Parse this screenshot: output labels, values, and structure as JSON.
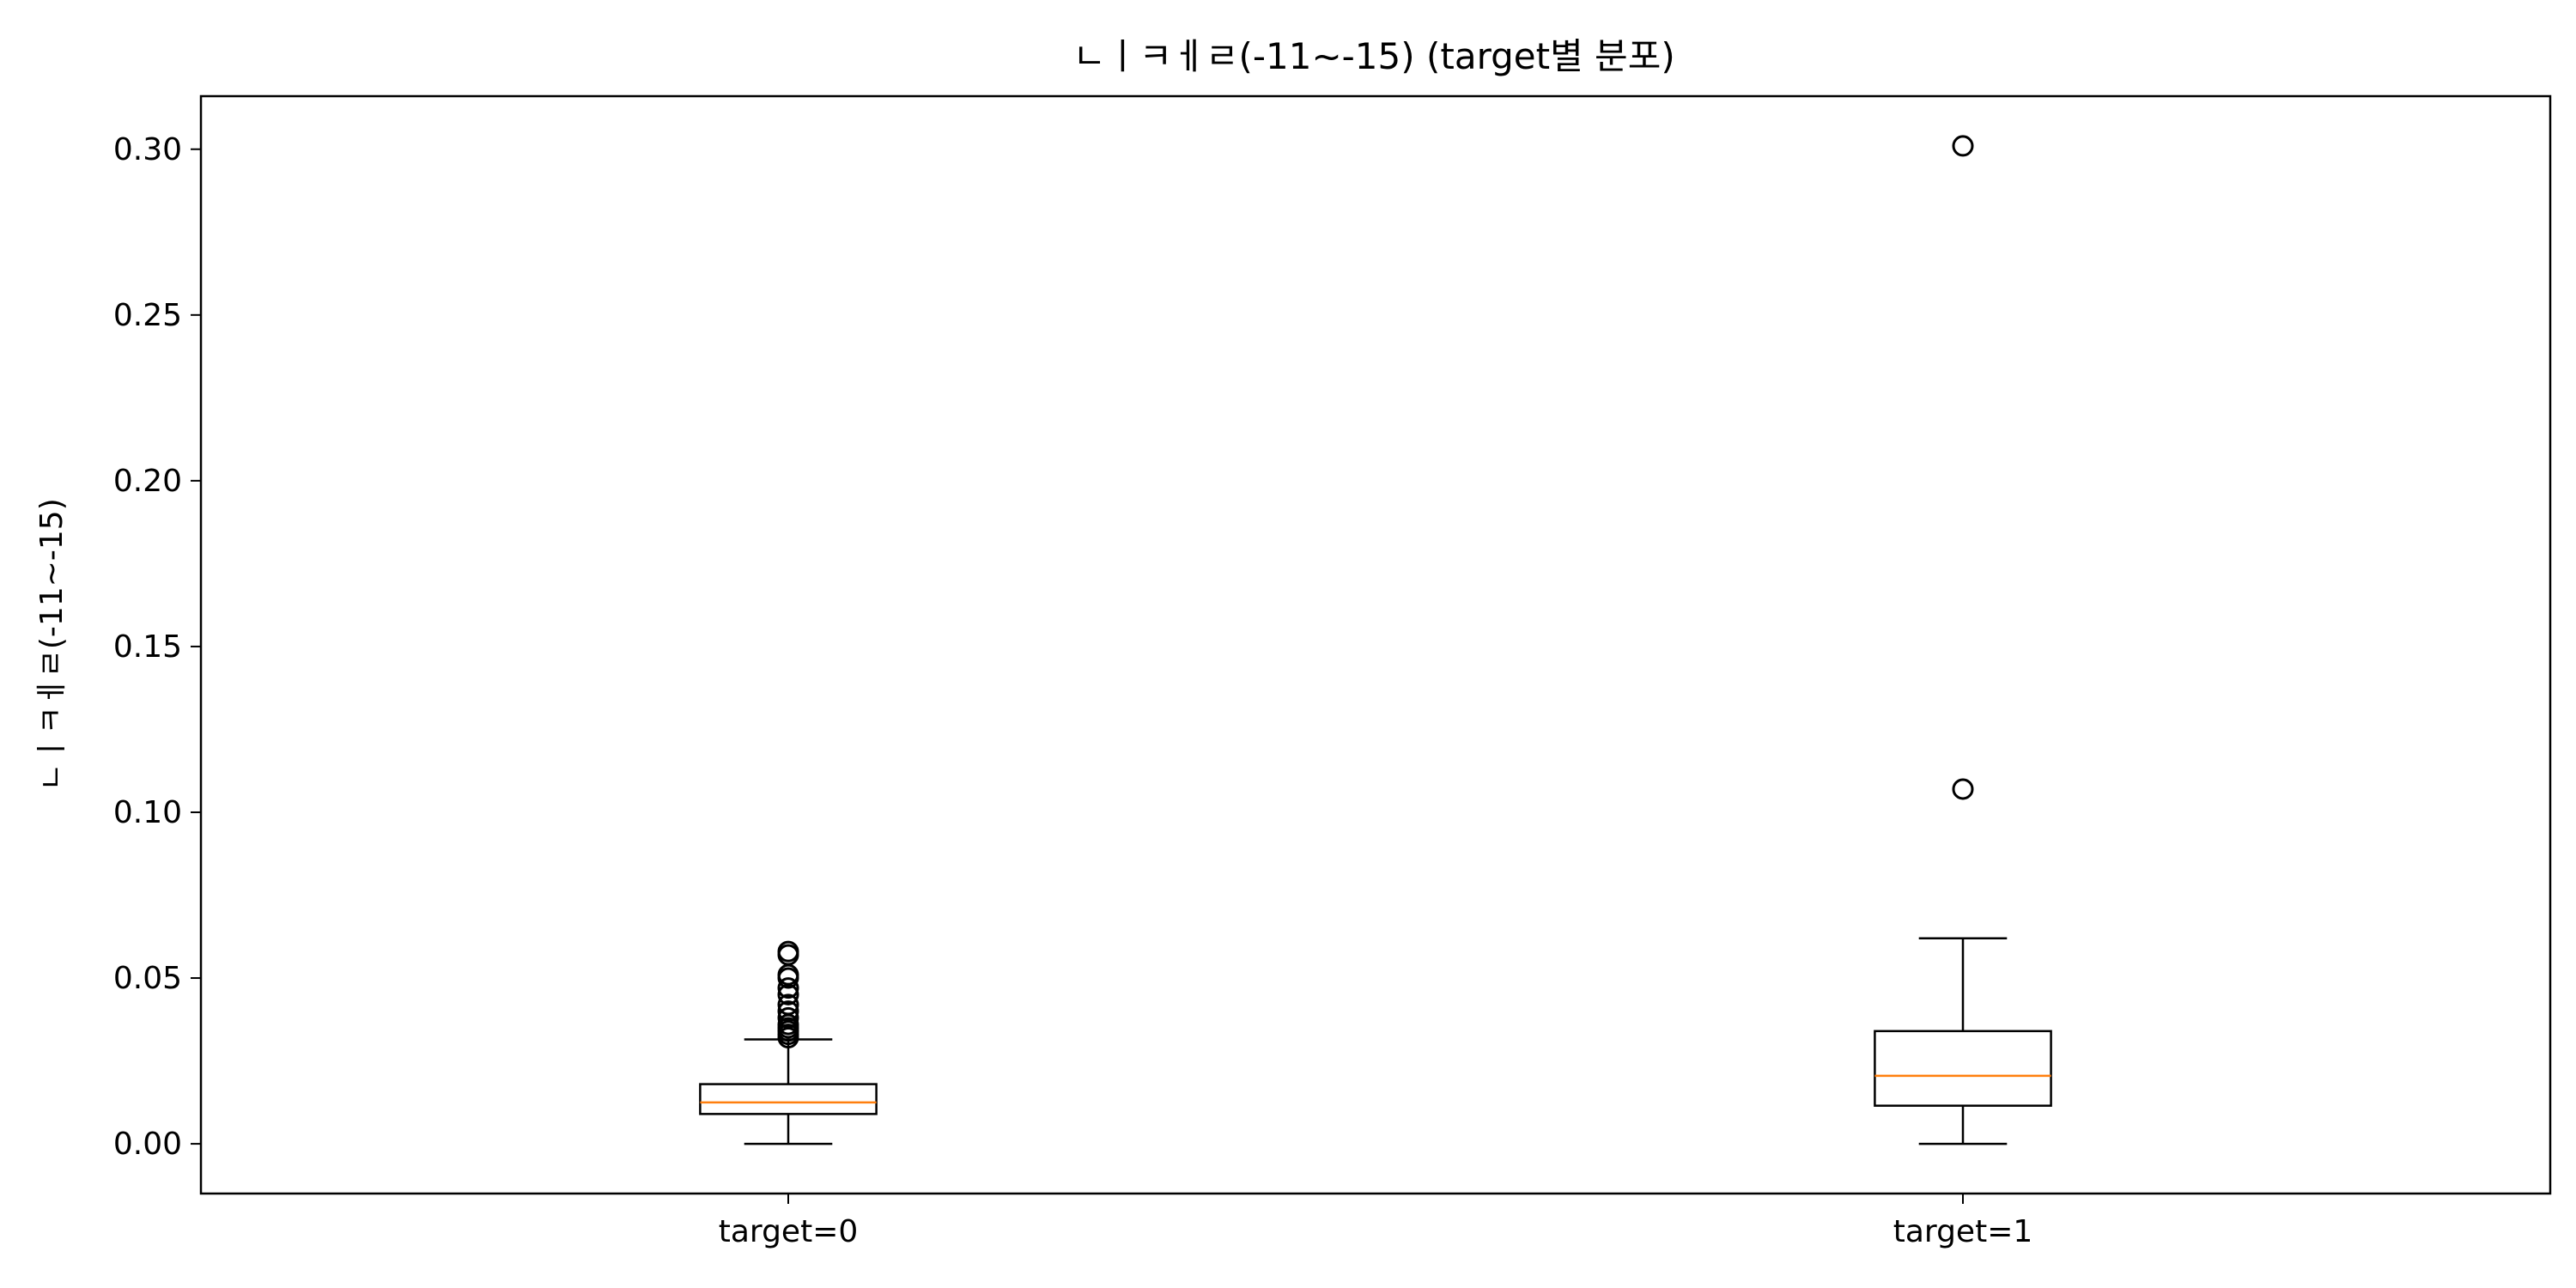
{
  "chart_data": {
    "type": "box",
    "title": "ㄴㅣㅋㅔㄹ(-11~-15) (target별 분포)",
    "xlabel": "",
    "ylabel": "ㄴㅣㅋㅔㄹ(-11~-15)",
    "ylim": [
      -0.015,
      0.316
    ],
    "yticks": [
      "0.00",
      "0.05",
      "0.10",
      "0.15",
      "0.20",
      "0.25",
      "0.30"
    ],
    "ytick_values": [
      0.0,
      0.05,
      0.1,
      0.15,
      0.2,
      0.25,
      0.3
    ],
    "categories": [
      "target=0",
      "target=1"
    ],
    "grid": false,
    "colors": {
      "box": "#000000",
      "median": "#ff7f0e"
    },
    "series": [
      {
        "category": "target=0",
        "whisker_low": 0.0,
        "q1": 0.009,
        "median": 0.0125,
        "q3": 0.018,
        "whisker_high": 0.0315,
        "fliers": [
          0.032,
          0.033,
          0.034,
          0.035,
          0.036,
          0.038,
          0.04,
          0.042,
          0.045,
          0.047,
          0.05,
          0.051,
          0.057,
          0.058
        ]
      },
      {
        "category": "target=1",
        "whisker_low": 0.0,
        "q1": 0.0115,
        "median": 0.0205,
        "q3": 0.034,
        "whisker_high": 0.062,
        "fliers": [
          0.107,
          0.301
        ]
      }
    ]
  }
}
